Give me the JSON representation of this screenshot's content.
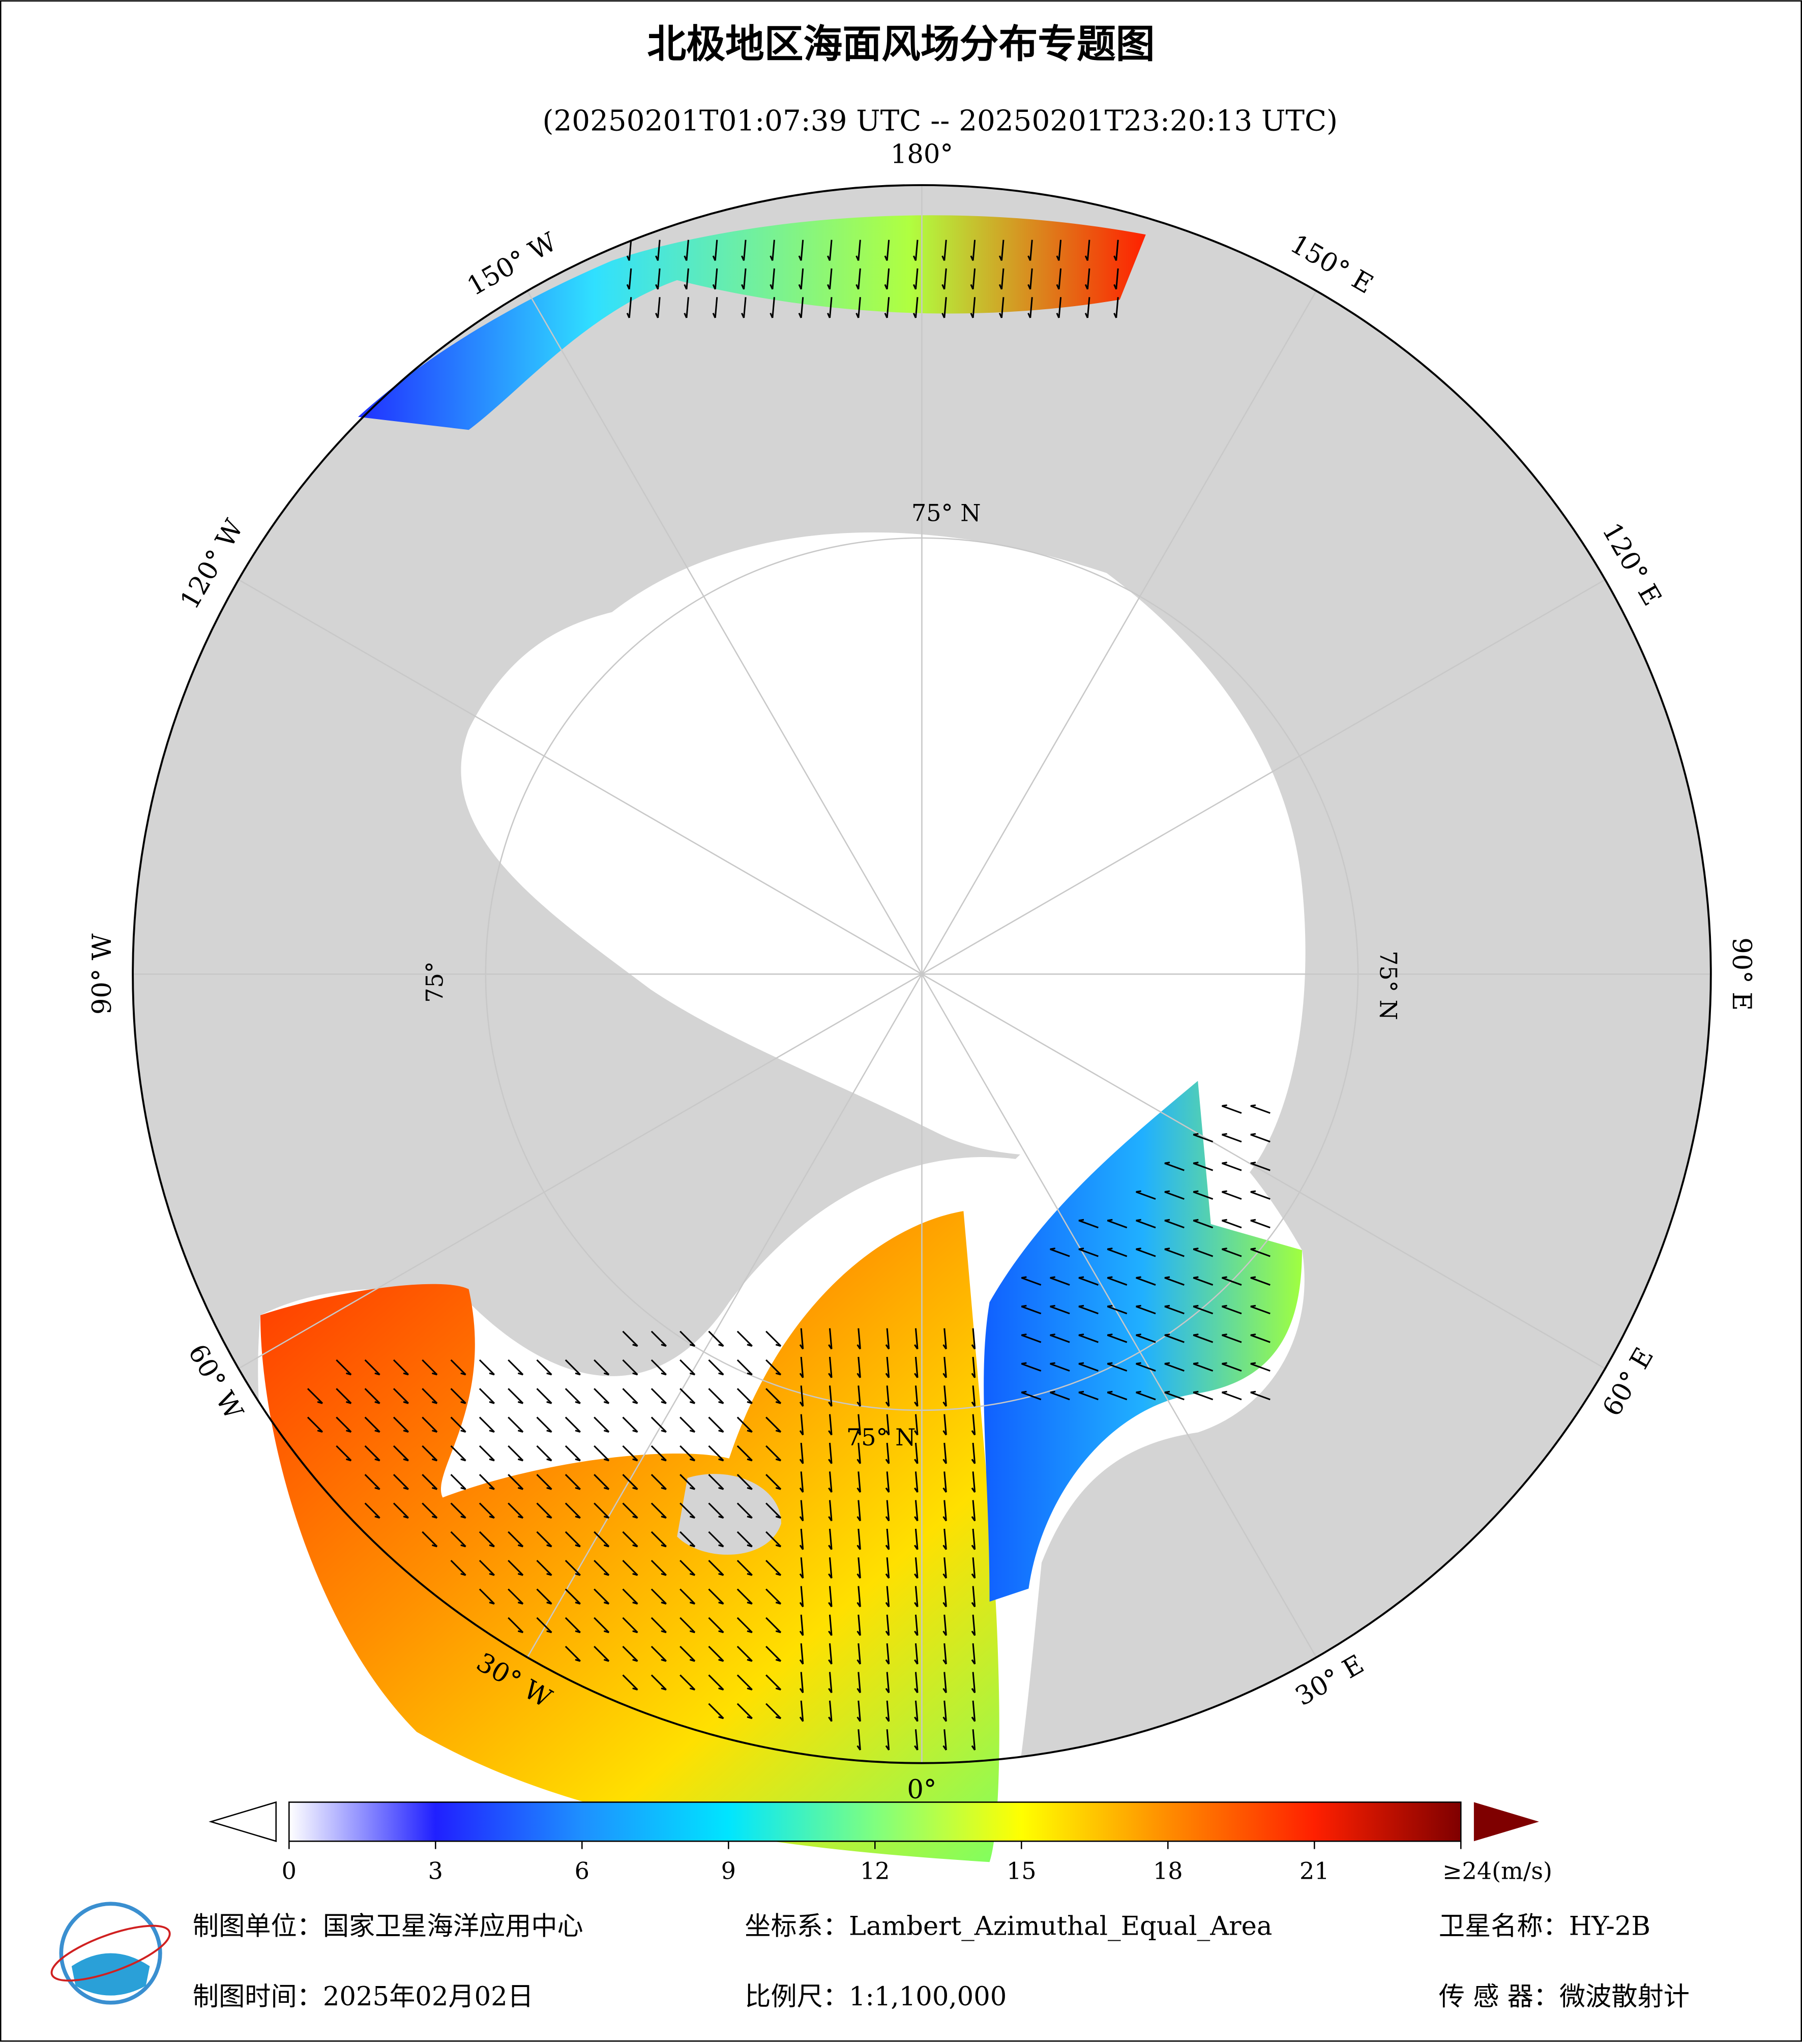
{
  "header": {
    "title": "北极地区海面风场分布专题图",
    "subtitle": "(20250201T01:07:39 UTC -- 20250201T23:20:13 UTC)"
  },
  "map": {
    "lon_labels": [
      "180°",
      "150° E",
      "120° E",
      "90° E",
      "60° E",
      "30° E",
      "0°",
      "30° W",
      "60° W",
      "90° W",
      "120° W",
      "150° W"
    ],
    "lat_labels": [
      "75° N",
      "75° N",
      "75° N",
      "75°"
    ]
  },
  "colorbar": {
    "range": [
      0,
      24
    ],
    "ticks": [
      0,
      3,
      6,
      9,
      12,
      15,
      18,
      21,
      {
        "value": 24,
        "label": "≥24(m/s)"
      }
    ],
    "colors": [
      "#ffffff",
      "#2020ff",
      "#1e90ff",
      "#00e5ff",
      "#7fff7f",
      "#ffff00",
      "#ff8c00",
      "#ff2000",
      "#7f0000"
    ]
  },
  "footer": {
    "unit": "制图单位：国家卫星海洋应用中心",
    "crs": "坐标系：Lambert_Azimuthal_Equal_Area",
    "satellite": "卫星名称：HY-2B",
    "date": "制图时间：2025年02月02日",
    "scale": "比例尺：1:1,100,000",
    "sensor": "传 感 器：微波散射计"
  }
}
